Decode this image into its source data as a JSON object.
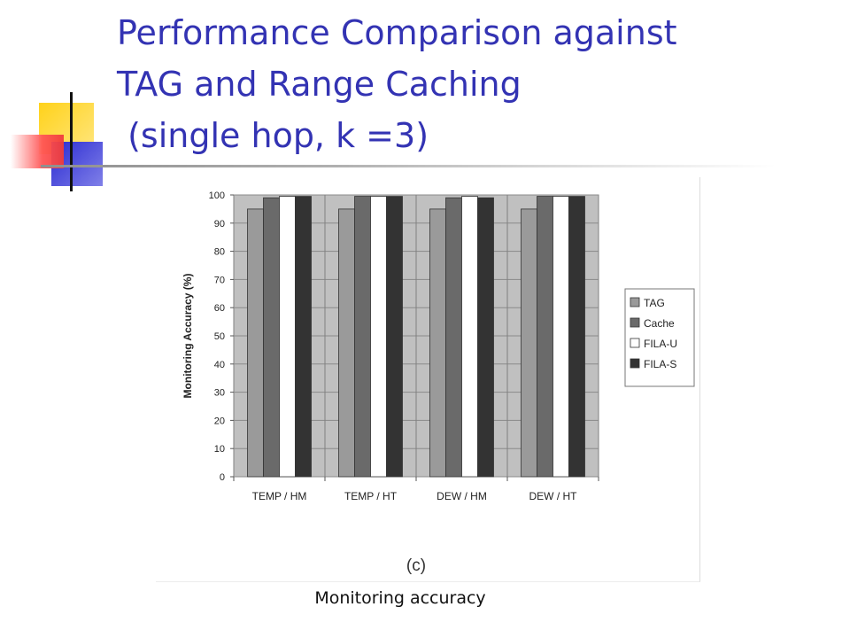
{
  "slide": {
    "title_lines": [
      "Performance Comparison against",
      "TAG and Range Caching",
      " (single hop, k =3)"
    ],
    "caption": "Monitoring accuracy"
  },
  "colors": {
    "title": "#3333b3",
    "plot_bg": "#c0c0c0",
    "TAG": "#9a9a9a",
    "Cache": "#6a6a6a",
    "FILA-U": "#ffffff",
    "FILA-S": "#333333",
    "deco_yellow": "#ffd21a",
    "deco_red": "#f03b3b",
    "deco_blue": "#2a2ad2"
  },
  "chart_data": {
    "type": "bar",
    "subfigure_label": "(c)",
    "ylabel": "Monitoring Accuracy (%)",
    "xlabel": "",
    "ylim": [
      0,
      100
    ],
    "yticks": [
      0,
      10,
      20,
      30,
      40,
      50,
      60,
      70,
      80,
      90,
      100
    ],
    "grid": true,
    "legend_position": "right",
    "categories": [
      "TEMP / HM",
      "TEMP / HT",
      "DEW / HM",
      "DEW / HT"
    ],
    "series": [
      {
        "name": "TAG",
        "values": [
          95,
          95,
          95,
          95
        ]
      },
      {
        "name": "Cache",
        "values": [
          99,
          99.5,
          99,
          99.5
        ]
      },
      {
        "name": "FILA-U",
        "values": [
          99.5,
          99.5,
          99.5,
          99.5
        ]
      },
      {
        "name": "FILA-S",
        "values": [
          99.5,
          99.5,
          99,
          99.5
        ]
      }
    ]
  }
}
